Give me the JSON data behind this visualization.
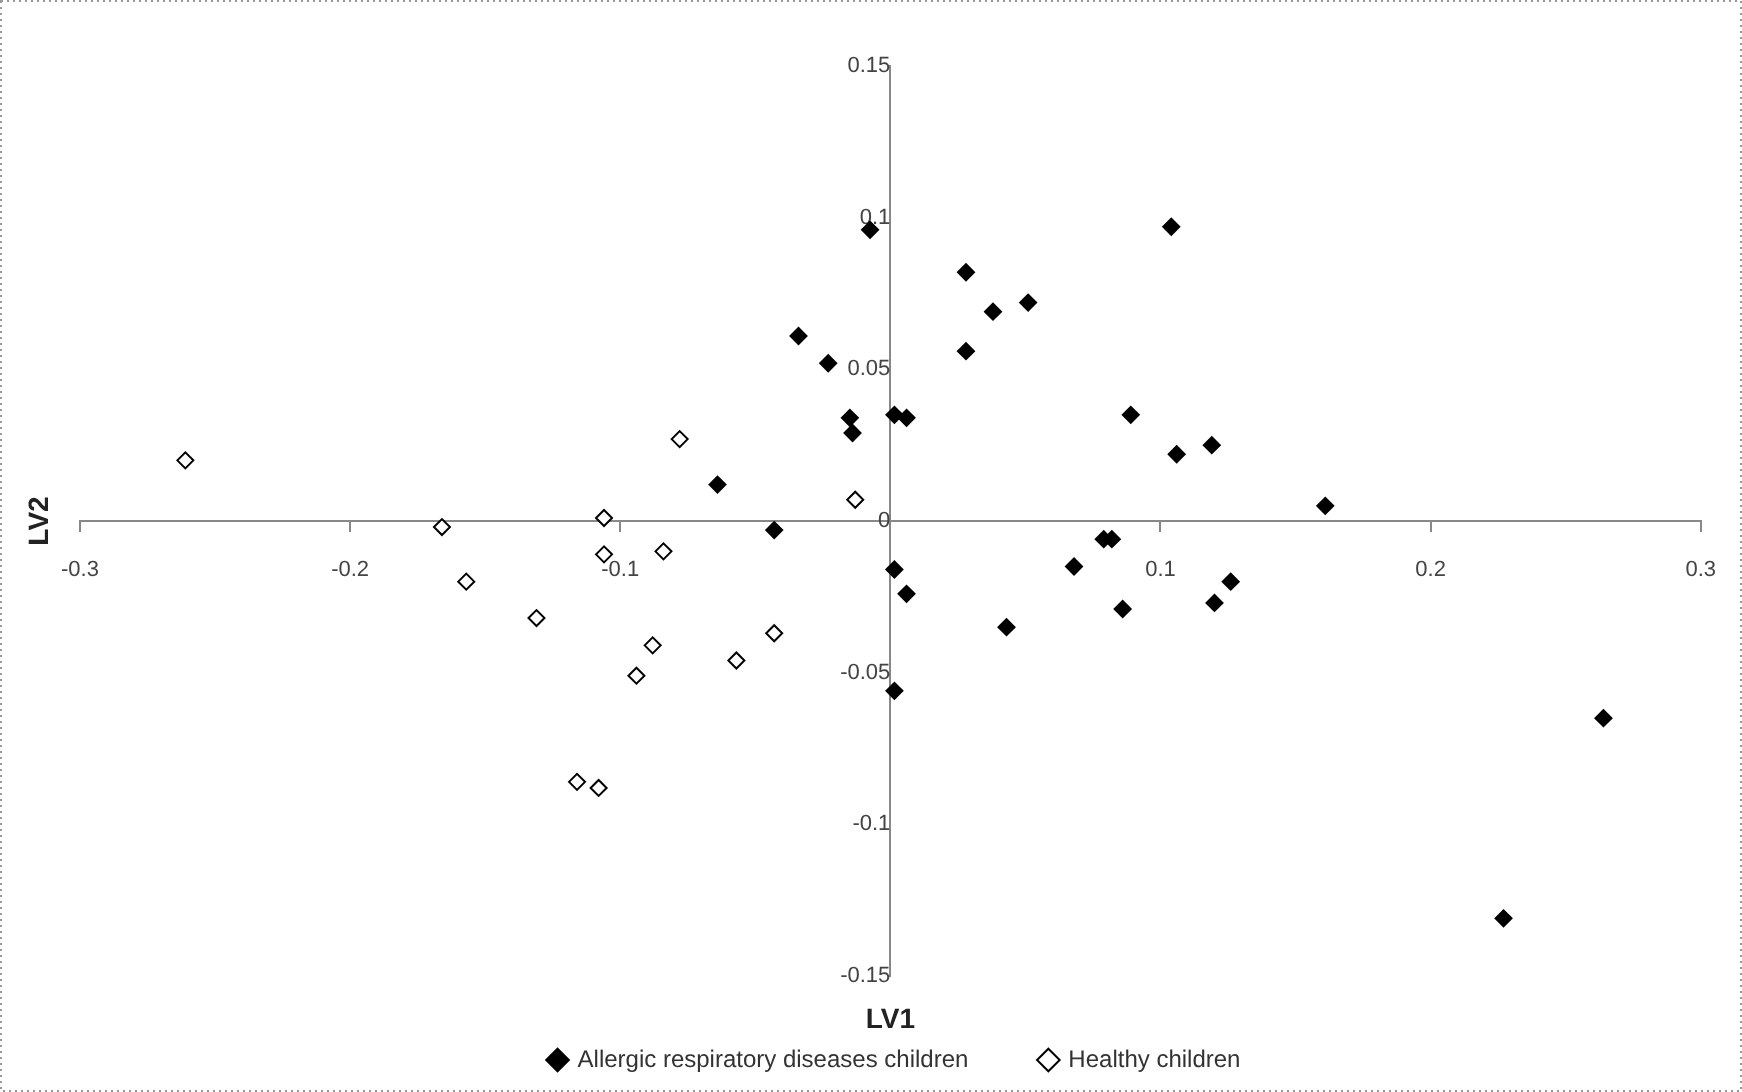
{
  "chart_data": {
    "type": "scatter",
    "xlabel": "LV1",
    "ylabel": "LV2",
    "xlim": [
      -0.3,
      0.3
    ],
    "xticks": [
      -0.3,
      -0.2,
      -0.1,
      {
        "value": 0,
        "label": null
      },
      0.1,
      0.2,
      0.3
    ],
    "ylim": [
      -0.15,
      0.15
    ],
    "yticks": [
      -0.15,
      -0.1,
      -0.05,
      0,
      0.05,
      0.1,
      0.15
    ],
    "grid": false,
    "legend": "bottom",
    "marker": "diamond",
    "series": [
      {
        "name": "Allergic respiratory diseases children",
        "color": "#000000",
        "x": [
          -0.0075,
          0.104,
          0.028,
          0.038,
          0.051,
          0.028,
          0.0015,
          0.006,
          0.089,
          0.106,
          0.119,
          0.161,
          0.079,
          0.082,
          -0.034,
          -0.023,
          -0.015,
          -0.014,
          -0.064,
          -0.043,
          0.0015,
          0.006,
          0.068,
          0.086,
          0.043,
          0.12,
          0.126,
          0.0015,
          0.264,
          0.227
        ],
        "values": [
          0.096,
          0.097,
          0.082,
          0.069,
          0.072,
          0.056,
          0.035,
          0.034,
          0.035,
          0.022,
          0.025,
          0.005,
          -0.006,
          -0.006,
          0.061,
          0.052,
          0.034,
          0.029,
          0.012,
          -0.003,
          -0.016,
          -0.024,
          -0.015,
          -0.029,
          -0.035,
          -0.027,
          -0.02,
          -0.056,
          -0.065,
          -0.131
        ]
      },
      {
        "name": "Healthy children",
        "color": "#000000",
        "x": [
          -0.261,
          -0.078,
          -0.013,
          -0.166,
          -0.106,
          -0.106,
          -0.084,
          -0.157,
          -0.131,
          -0.088,
          -0.094,
          -0.057,
          -0.043,
          -0.116,
          -0.108
        ],
        "values": [
          0.02,
          0.027,
          0.007,
          -0.002,
          0.001,
          -0.011,
          -0.01,
          -0.02,
          -0.032,
          -0.041,
          -0.051,
          -0.046,
          -0.037,
          -0.086,
          -0.088
        ]
      }
    ]
  }
}
